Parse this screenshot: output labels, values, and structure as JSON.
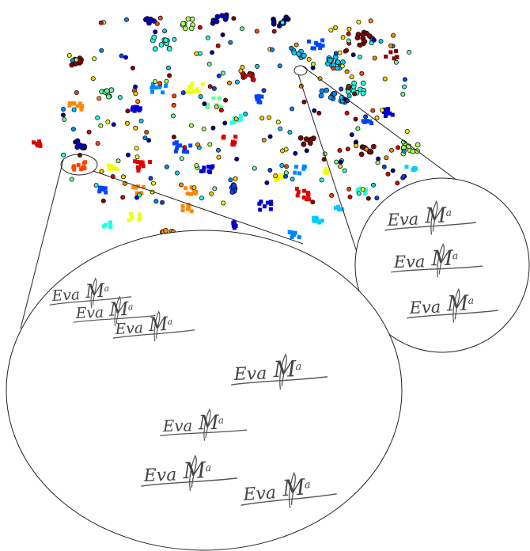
{
  "signature": {
    "text": "Eva",
    "initial": "M",
    "superscript": "a"
  },
  "colors": {
    "stroke": "#222222",
    "signature_ink": "#555555",
    "palette": [
      "#00007f",
      "#0000cc",
      "#0044ff",
      "#0088ff",
      "#00ccff",
      "#22ffdd",
      "#66ff99",
      "#aaff55",
      "#eeff11",
      "#ffcc00",
      "#ff8800",
      "#ff4400",
      "#dd0000",
      "#880000"
    ]
  },
  "zoom_small": {
    "count": 3,
    "source": "top-right cluster"
  },
  "zoom_large": {
    "count": 6,
    "source": "left cluster"
  }
}
